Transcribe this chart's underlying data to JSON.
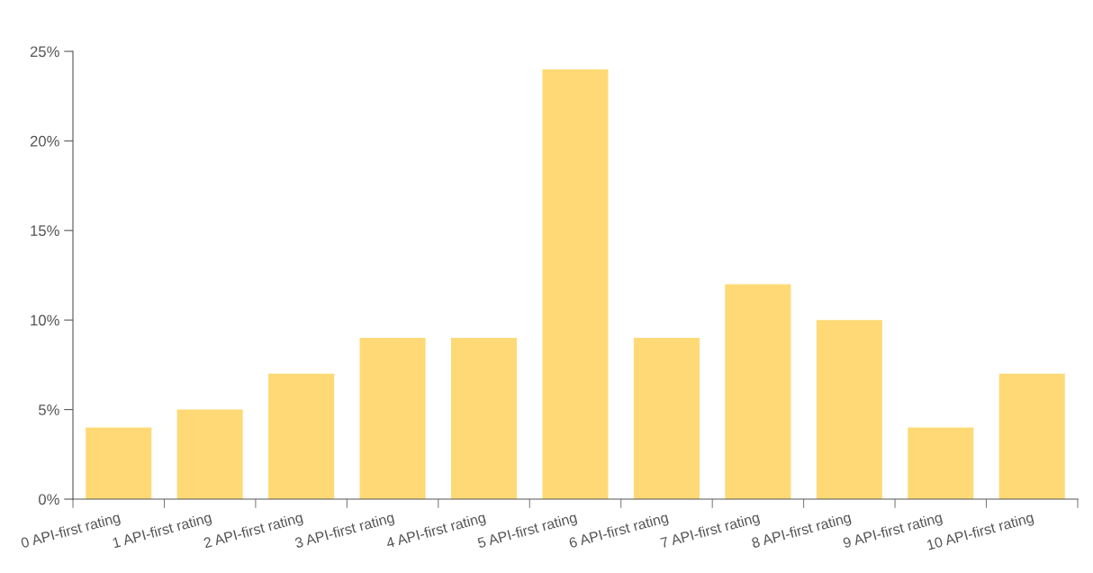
{
  "chart_data": {
    "type": "bar",
    "categories": [
      "0 API-first rating",
      "1 API-first rating",
      "2 API-first rating",
      "3 API-first rating",
      "4 API-first rating",
      "5 API-first rating",
      "6 API-first rating",
      "7 API-first rating",
      "8 API-first rating",
      "9 API-first rating",
      "10 API-first rating"
    ],
    "values": [
      4,
      5,
      7,
      9,
      9,
      24,
      9,
      12,
      10,
      4,
      7
    ],
    "color": "#fed975",
    "ylim": [
      0,
      25
    ],
    "yticks": [
      {
        "value": 0,
        "label": "0%"
      },
      {
        "value": 5,
        "label": "5%"
      },
      {
        "value": 10,
        "label": "10%"
      },
      {
        "value": 15,
        "label": "15%"
      },
      {
        "value": 20,
        "label": "20%"
      },
      {
        "value": 25,
        "label": "25%"
      }
    ],
    "grid": false,
    "legend": false
  }
}
